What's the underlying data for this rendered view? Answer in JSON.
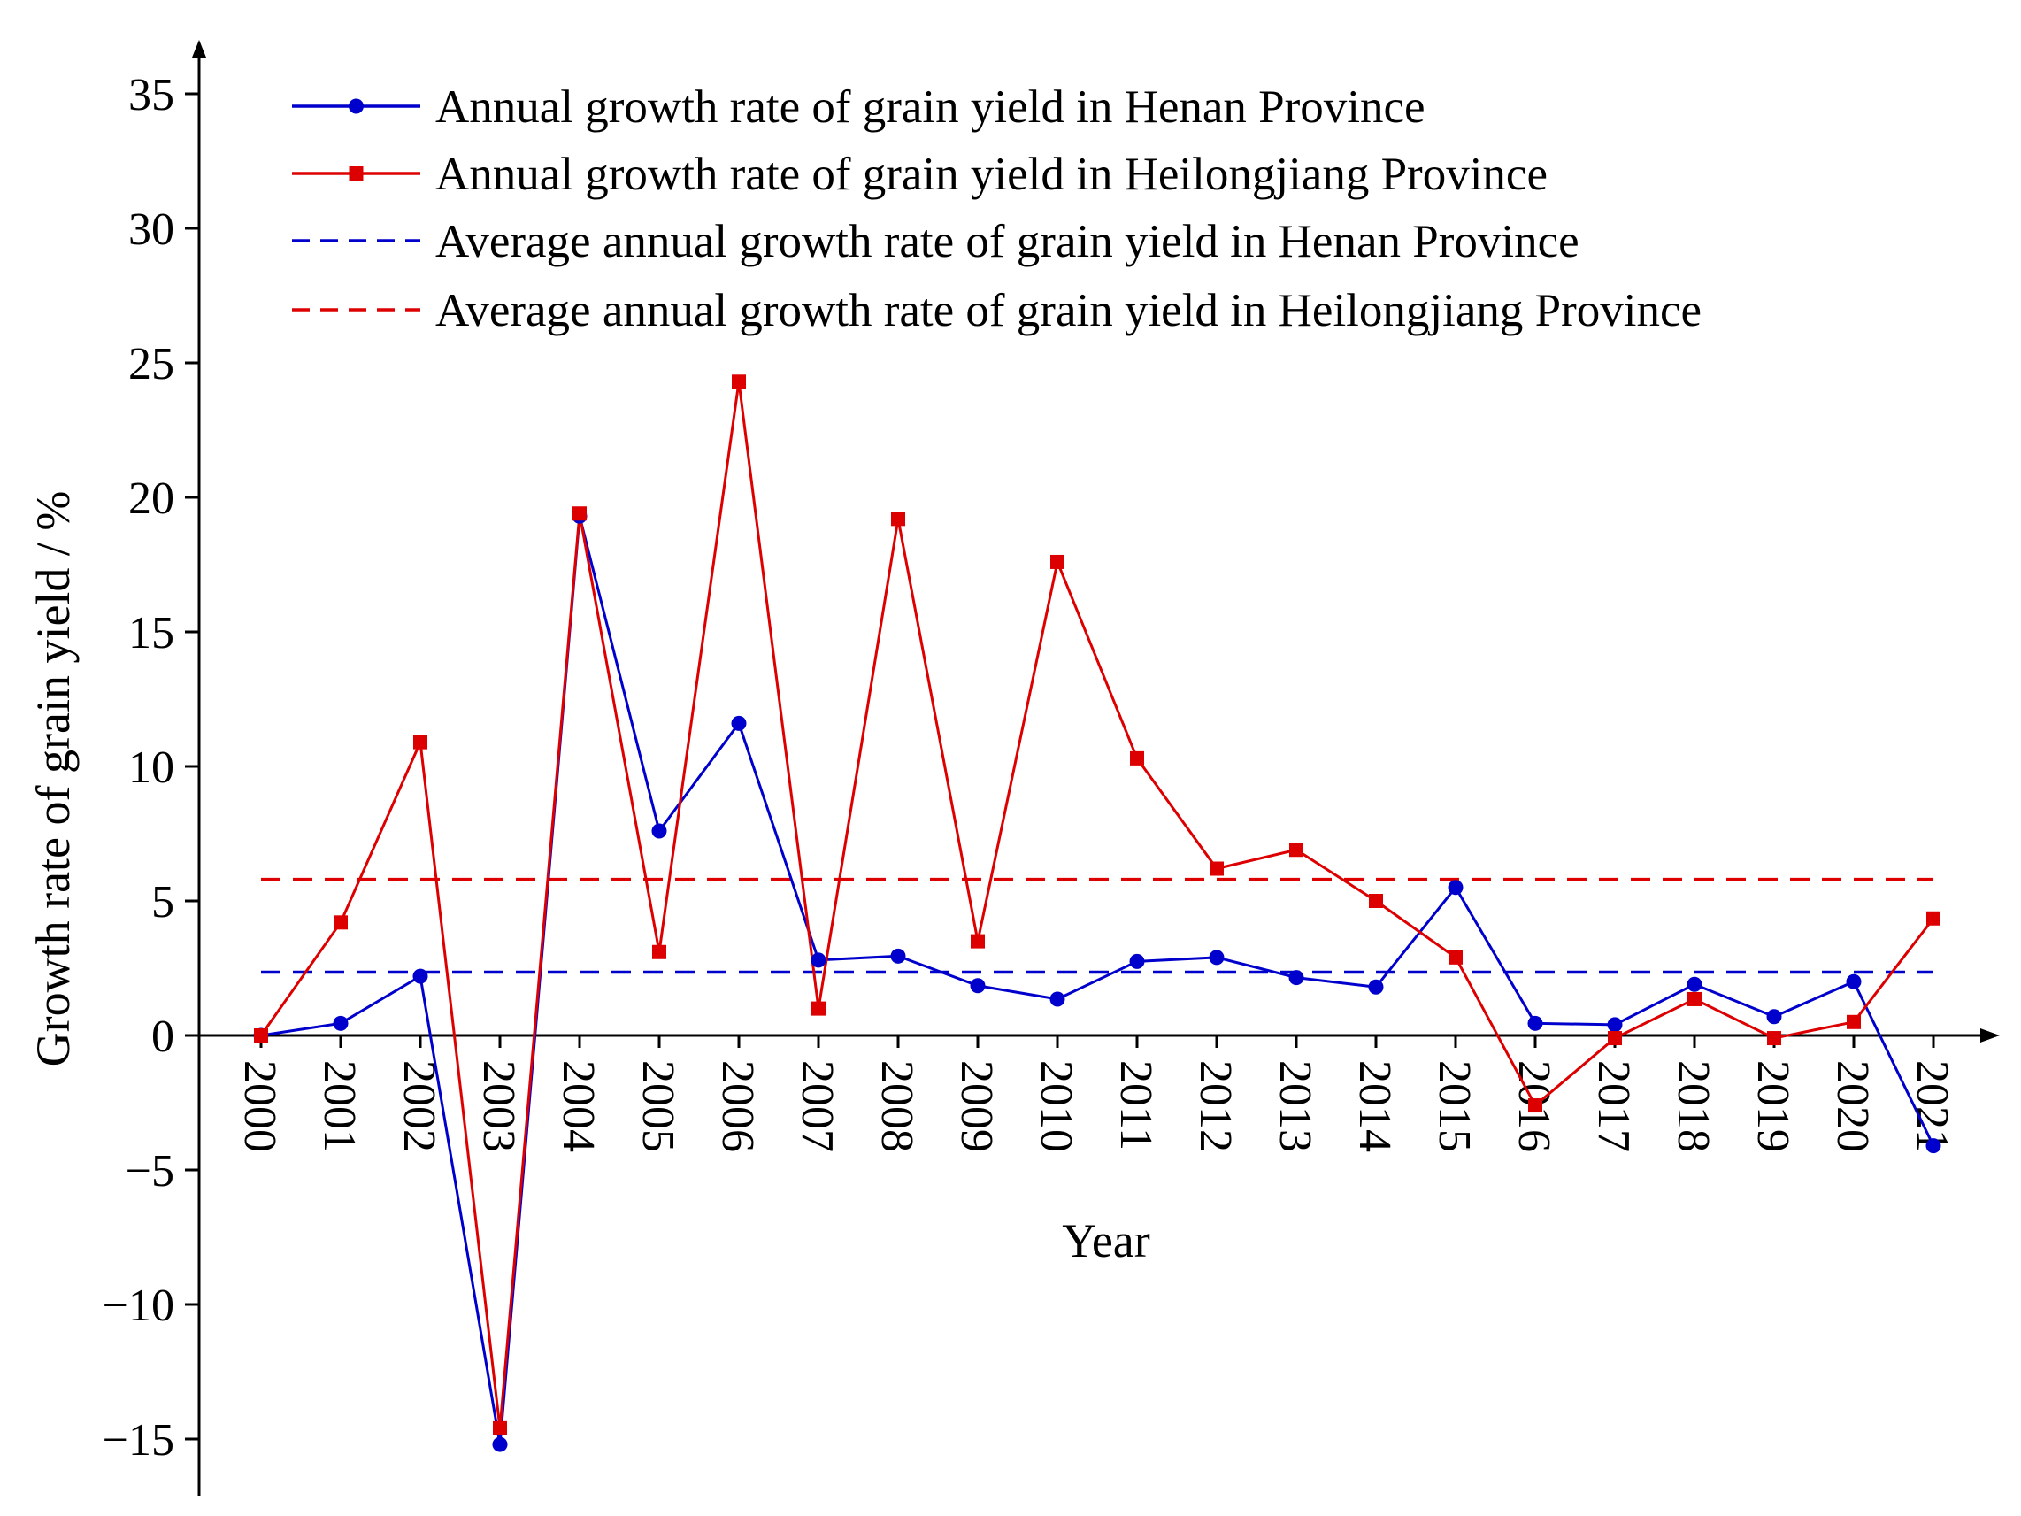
{
  "chart_data": {
    "type": "line",
    "title": "",
    "xlabel": "Year",
    "ylabel": "Growth rate of grain yield / %",
    "x": [
      "2000",
      "2001",
      "2002",
      "2003",
      "2004",
      "2005",
      "2006",
      "2007",
      "2008",
      "2009",
      "2010",
      "2011",
      "2012",
      "2013",
      "2014",
      "2015",
      "2016",
      "2017",
      "2018",
      "2019",
      "2020",
      "2021"
    ],
    "ylim": [
      -17,
      37
    ],
    "yticks": [
      "35",
      "30",
      "25",
      "20",
      "15",
      "10",
      "5",
      "0",
      "-5",
      "-10",
      "-15"
    ],
    "ytick_values": [
      35,
      30,
      25,
      20,
      15,
      10,
      5,
      0,
      -5,
      -10,
      -15
    ],
    "grid": false,
    "legend_position": "top",
    "series": [
      {
        "name": "Annual growth rate of grain yield in Henan Province",
        "color": "#0000cc",
        "marker": "circle",
        "style": "solid",
        "values": [
          0,
          0.45,
          2.2,
          -15.2,
          19.3,
          7.6,
          11.6,
          2.8,
          2.95,
          1.85,
          1.35,
          2.75,
          2.9,
          2.15,
          1.8,
          5.5,
          0.45,
          0.4,
          1.9,
          0.7,
          2.0,
          -4.1
        ]
      },
      {
        "name": "Annual growth rate of grain yield in Heilongjiang Province",
        "color": "#dd0000",
        "marker": "square",
        "style": "solid",
        "values": [
          0,
          4.2,
          10.9,
          -14.6,
          19.4,
          3.1,
          24.3,
          1.0,
          19.2,
          3.5,
          17.6,
          10.3,
          6.2,
          6.9,
          5.0,
          2.9,
          -2.6,
          -0.1,
          1.35,
          -0.1,
          0.5,
          4.35
        ]
      },
      {
        "name": "Average annual growth rate of grain yield in Henan Province",
        "color": "#0000cc",
        "style": "dashed",
        "constant": 2.35
      },
      {
        "name": "Average annual growth rate of grain yield in Heilongjiang Province",
        "color": "#dd0000",
        "style": "dashed",
        "constant": 5.8
      }
    ]
  }
}
